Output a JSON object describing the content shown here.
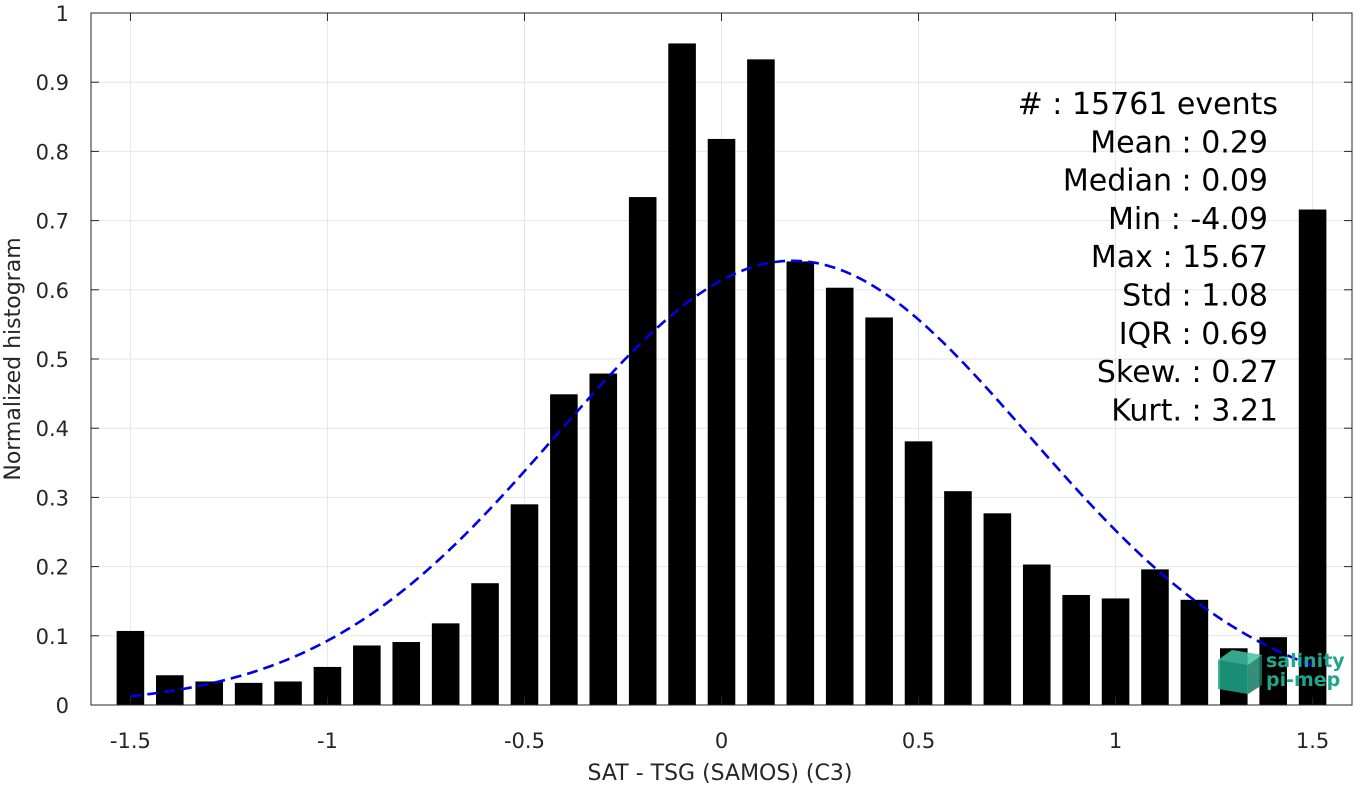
{
  "chart_data": {
    "type": "bar",
    "title": "",
    "xlabel": "SAT - TSG (SAMOS) (C3)",
    "ylabel": "Normalized histogram",
    "xlim": [
      -1.6,
      1.6
    ],
    "ylim": [
      0,
      1
    ],
    "grid": true,
    "x_ticks": [
      -1.5,
      -1,
      -0.5,
      0,
      0.5,
      1,
      1.5
    ],
    "x_tick_labels": [
      "-1.5",
      "-1",
      "-0.5",
      "0",
      "0.5",
      "1",
      "1.5"
    ],
    "y_ticks": [
      0,
      0.1,
      0.2,
      0.3,
      0.4,
      0.5,
      0.6,
      0.7,
      0.8,
      0.9,
      1
    ],
    "y_tick_labels": [
      "0",
      "0.1",
      "0.2",
      "0.3",
      "0.4",
      "0.5",
      "0.6",
      "0.7",
      "0.8",
      "0.9",
      "1"
    ],
    "bar_width": 0.07,
    "bar_color": "#000000",
    "x": [
      -1.5,
      -1.4,
      -1.3,
      -1.2,
      -1.1,
      -1.0,
      -0.9,
      -0.8,
      -0.7,
      -0.6,
      -0.5,
      -0.4,
      -0.3,
      -0.2,
      -0.1,
      0.0,
      0.1,
      0.2,
      0.3,
      0.4,
      0.5,
      0.6,
      0.7,
      0.8,
      0.9,
      1.0,
      1.1,
      1.2,
      1.3,
      1.4,
      1.5
    ],
    "values": [
      0.107,
      0.043,
      0.034,
      0.032,
      0.034,
      0.055,
      0.086,
      0.091,
      0.118,
      0.176,
      0.29,
      0.449,
      0.479,
      0.734,
      0.956,
      0.818,
      0.933,
      0.641,
      0.603,
      0.56,
      0.381,
      0.309,
      0.277,
      0.203,
      0.159,
      0.154,
      0.196,
      0.152,
      0.082,
      0.098,
      0.716
    ],
    "fit_curve": {
      "type": "normal",
      "mean": 0.18,
      "std": 0.6,
      "peak": 0.642,
      "x_range": [
        -1.5,
        1.5
      ],
      "color": "#0000e6",
      "style": "dashed"
    },
    "annotations": [
      {
        "label": "#  ",
        "value": ": 15761 events"
      },
      {
        "label": "Mean",
        "value": ": 0.29"
      },
      {
        "label": "Median",
        "value": ": 0.09"
      },
      {
        "label": "Min",
        "value": ": -4.09"
      },
      {
        "label": "Max",
        "value": ": 15.67"
      },
      {
        "label": "Std",
        "value": ": 1.08"
      },
      {
        "label": "IQR",
        "value": ": 0.69"
      },
      {
        "label": "Skew.",
        "value": ": 0.27"
      },
      {
        "label": "Kurt.",
        "value": ": 3.21"
      }
    ]
  },
  "logo": {
    "line1": "salinity",
    "line2": "pi-mep",
    "color": "#1fa68a"
  }
}
